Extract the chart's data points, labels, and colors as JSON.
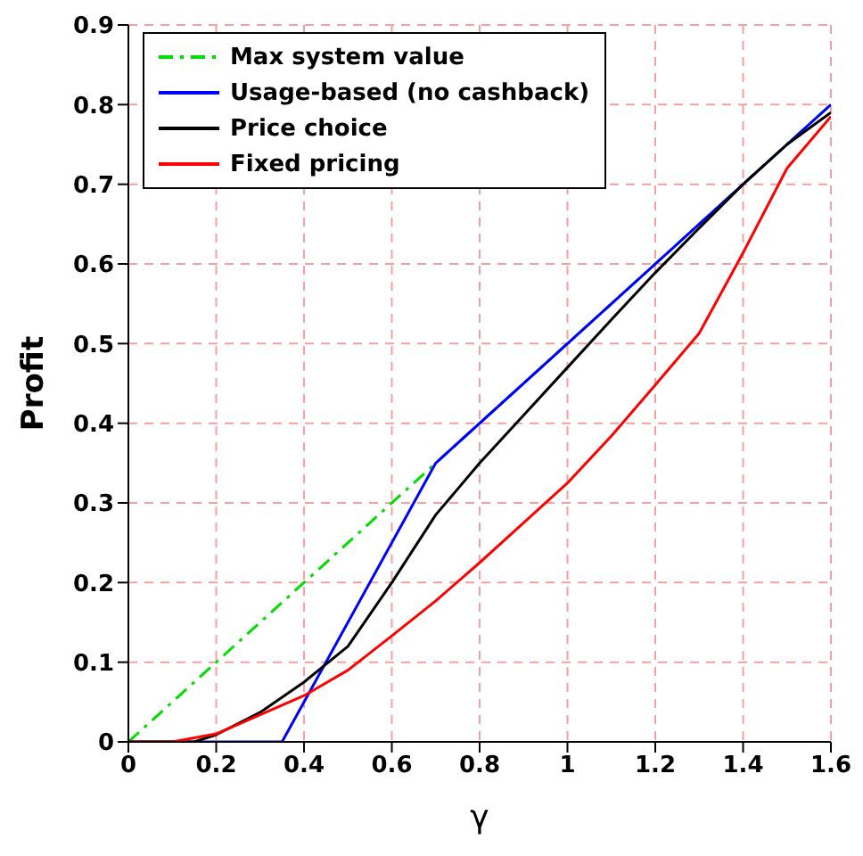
{
  "chart_data": {
    "type": "line",
    "xlabel": "γ",
    "ylabel": "Profit",
    "xlim": [
      0,
      1.6
    ],
    "ylim": [
      0,
      0.9
    ],
    "xticks": [
      0,
      0.2,
      0.4,
      0.6,
      0.8,
      1,
      1.2,
      1.4,
      1.6
    ],
    "yticks": [
      0,
      0.1,
      0.2,
      0.3,
      0.4,
      0.5,
      0.6,
      0.7,
      0.8,
      0.9
    ],
    "grid": true,
    "legend": "top left",
    "marker": "none",
    "series": [
      {
        "name": "Max system value",
        "color": "#00dd00",
        "line_style": "dashed",
        "x": [
          0,
          0.7,
          1.6
        ],
        "values": [
          0,
          0.35,
          0.8
        ]
      },
      {
        "name": "Usage-based (no cashback)",
        "color": "#0000ff",
        "line_style": "solid",
        "x": [
          0,
          0.35,
          0.7,
          1.6
        ],
        "values": [
          0,
          0,
          0.35,
          0.8
        ]
      },
      {
        "name": "Price choice",
        "color": "#000000",
        "line_style": "solid",
        "x": [
          0,
          0.15,
          0.2,
          0.3,
          0.4,
          0.5,
          0.6,
          0.7,
          0.8,
          0.9,
          1,
          1.1,
          1.2,
          1.3,
          1.4,
          1.5,
          1.6
        ],
        "values": [
          0,
          0,
          0.009,
          0.037,
          0.075,
          0.12,
          0.2,
          0.285,
          0.35,
          0.41,
          0.47,
          0.53,
          0.589,
          0.645,
          0.7,
          0.75,
          0.79
        ]
      },
      {
        "name": "Fixed pricing",
        "color": "#ff0000",
        "line_style": "solid",
        "x": [
          0,
          0.1,
          0.2,
          0.3,
          0.4,
          0.5,
          0.6,
          0.7,
          0.8,
          0.9,
          1,
          1.1,
          1.2,
          1.3,
          1.4,
          1.5,
          1.6
        ],
        "values": [
          0,
          0,
          0.01,
          0.034,
          0.058,
          0.09,
          0.133,
          0.177,
          0.225,
          0.275,
          0.325,
          0.384,
          0.448,
          0.513,
          0.614,
          0.72,
          0.785
        ]
      }
    ]
  }
}
